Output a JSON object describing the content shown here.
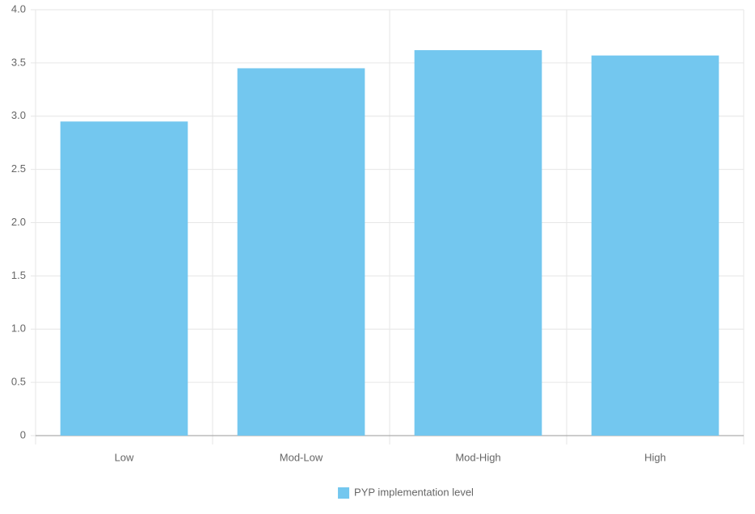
{
  "chart_data": {
    "type": "bar",
    "categories": [
      "Low",
      "Mod-Low",
      "Mod-High",
      "High"
    ],
    "series": [
      {
        "name": "PYP implementation level",
        "color": "#73c7ef",
        "values": [
          2.95,
          3.45,
          3.62,
          3.57
        ]
      }
    ],
    "ylim": [
      0,
      4
    ],
    "yticks": [
      0,
      0.5,
      {
        "value": 1,
        "label": "1.0"
      },
      1.5,
      {
        "value": 2,
        "label": "2.0"
      },
      2.5,
      {
        "value": 3,
        "label": "3.0"
      },
      3.5,
      {
        "value": 4,
        "label": "4.0"
      }
    ],
    "grid": true,
    "legend": "bottom"
  }
}
